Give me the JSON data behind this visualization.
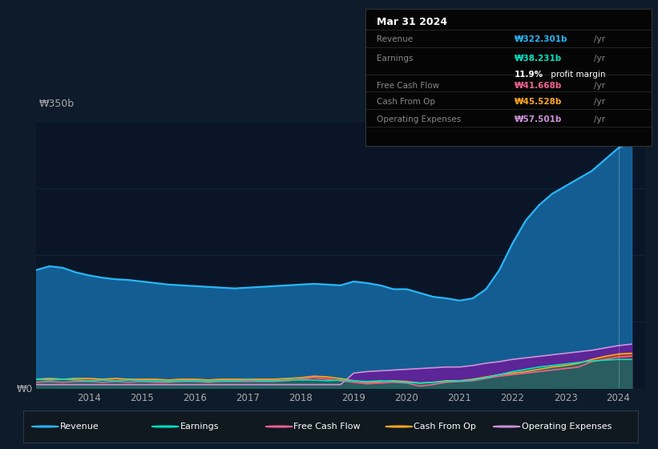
{
  "bg_color": "#0d1b2a",
  "chart_area_color": "#0a1628",
  "grid_color": "#1e3a5f",
  "years": [
    2013.0,
    2013.25,
    2013.5,
    2013.75,
    2014.0,
    2014.25,
    2014.5,
    2014.75,
    2015.0,
    2015.25,
    2015.5,
    2015.75,
    2016.0,
    2016.25,
    2016.5,
    2016.75,
    2017.0,
    2017.25,
    2017.5,
    2017.75,
    2018.0,
    2018.25,
    2018.5,
    2018.75,
    2019.0,
    2019.25,
    2019.5,
    2019.75,
    2020.0,
    2020.25,
    2020.5,
    2020.75,
    2021.0,
    2021.25,
    2021.5,
    2021.75,
    2022.0,
    2022.25,
    2022.5,
    2022.75,
    2023.0,
    2023.25,
    2023.5,
    2023.75,
    2024.0,
    2024.25
  ],
  "revenue": [
    155,
    160,
    158,
    152,
    148,
    145,
    143,
    142,
    140,
    138,
    136,
    135,
    134,
    133,
    132,
    131,
    132,
    133,
    134,
    135,
    136,
    137,
    136,
    135,
    140,
    138,
    135,
    130,
    130,
    125,
    120,
    118,
    115,
    118,
    130,
    155,
    190,
    220,
    240,
    255,
    265,
    275,
    285,
    300,
    315,
    322
  ],
  "earnings": [
    12,
    11,
    12,
    11,
    10,
    11,
    10,
    11,
    10,
    10,
    9,
    10,
    10,
    9,
    10,
    10,
    11,
    10,
    10,
    11,
    11,
    11,
    10,
    11,
    10,
    9,
    10,
    9,
    8,
    7,
    8,
    9,
    10,
    11,
    14,
    18,
    22,
    25,
    28,
    30,
    32,
    34,
    36,
    37,
    38,
    38
  ],
  "free_cash_flow": [
    8,
    9,
    8,
    9,
    9,
    8,
    9,
    8,
    9,
    8,
    8,
    9,
    9,
    8,
    9,
    9,
    9,
    9,
    9,
    10,
    12,
    14,
    12,
    10,
    8,
    6,
    7,
    8,
    7,
    3,
    5,
    8,
    9,
    10,
    13,
    16,
    18,
    20,
    22,
    24,
    26,
    28,
    35,
    38,
    41,
    42
  ],
  "cash_from_op": [
    12,
    13,
    12,
    13,
    13,
    12,
    13,
    12,
    12,
    12,
    11,
    12,
    12,
    11,
    12,
    12,
    12,
    12,
    12,
    13,
    14,
    16,
    15,
    13,
    10,
    8,
    9,
    10,
    9,
    7,
    8,
    10,
    10,
    12,
    15,
    18,
    20,
    22,
    25,
    28,
    30,
    33,
    38,
    42,
    45,
    46
  ],
  "operating_expenses": [
    5,
    5,
    5,
    5,
    5,
    5,
    5,
    5,
    5,
    5,
    5,
    5,
    5,
    5,
    5,
    5,
    5,
    5,
    5,
    5,
    5,
    5,
    5,
    5,
    20,
    22,
    23,
    24,
    25,
    26,
    27,
    28,
    28,
    30,
    33,
    35,
    38,
    40,
    42,
    44,
    46,
    48,
    50,
    53,
    56,
    58
  ],
  "revenue_color": "#29b6f6",
  "revenue_fill": "#1565a0",
  "earnings_color": "#00e5c0",
  "earnings_fill": "#00796b",
  "fcf_color": "#f06292",
  "fcf_fill": "#880e4f",
  "cashop_color": "#ffa726",
  "cashop_fill": "#b35000",
  "opex_color": "#ce93d8",
  "opex_fill": "#6a1b9a",
  "ylim": [
    0,
    350
  ],
  "xlim": [
    2013.0,
    2024.5
  ],
  "xticks": [
    2014,
    2015,
    2016,
    2017,
    2018,
    2019,
    2020,
    2021,
    2022,
    2023,
    2024
  ],
  "ytick_labels": [
    "₩0",
    "₩350b"
  ],
  "highlight_x": 2024.0,
  "tooltip_title": "Mar 31 2024",
  "tooltip_rows": [
    {
      "label": "Revenue",
      "value": "₩322.301b",
      "color": "#29b6f6",
      "sub": null
    },
    {
      "label": "Earnings",
      "value": "₩38.231b",
      "color": "#00e5c0",
      "sub": "11.9% profit margin"
    },
    {
      "label": "Free Cash Flow",
      "value": "₩41.668b",
      "color": "#f06292",
      "sub": null
    },
    {
      "label": "Cash From Op",
      "value": "₩45.528b",
      "color": "#ffa726",
      "sub": null
    },
    {
      "label": "Operating Expenses",
      "value": "₩57.501b",
      "color": "#ce93d8",
      "sub": null
    }
  ],
  "legend_items": [
    {
      "label": "Revenue",
      "color": "#29b6f6"
    },
    {
      "label": "Earnings",
      "color": "#00e5c0"
    },
    {
      "label": "Free Cash Flow",
      "color": "#f06292"
    },
    {
      "label": "Cash From Op",
      "color": "#ffa726"
    },
    {
      "label": "Operating Expenses",
      "color": "#ce93d8"
    }
  ]
}
